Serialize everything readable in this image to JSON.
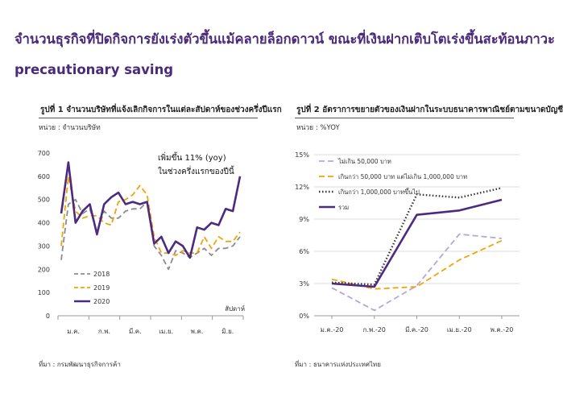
{
  "headline": {
    "line1": "จำนวนธุรกิจที่ปิดกิจการยังเร่งตัวขึ้นแม้คลายล็อกดาวน์ ขณะที่เงินฝากเติบโตเร่งขึ้นสะท้อนภาวะ",
    "line2": "precautionary saving"
  },
  "charts": {
    "left": {
      "title": "รูปที่ 1 จำนวนบริษัทที่แจ้งเลิกกิจการในแต่ละสัปดาห์ของช่วงครึ่งปีแรก",
      "unit": "หน่วย : จำนวนบริษัท",
      "source": "ที่มา : กรมพัฒนาธุรกิจการค้า",
      "annotation_line1": "เพิ่มขึ้น  11% (yoy)",
      "annotation_line2": "ในช่วงครึ่งแรกของปีนี้",
      "x_unit": "สัปดาห์"
    },
    "right": {
      "title": "รูปที่ 2 อัตราการขยายตัวของเงินฝากในระบบธนาคารพาณิชย์ตามขนาดบัญชี",
      "unit": "หน่วย : %YOY",
      "source": "ที่มา : ธนาคารแห่งประเทศไทย"
    }
  },
  "chart_data": [
    {
      "type": "line",
      "title": "รูปที่ 1 จำนวนบริษัทที่แจ้งเลิกกิจการในแต่ละสัปดาห์ของช่วงครึ่งปีแรก",
      "ylabel": "หน่วย : จำนวนบริษัท",
      "xlabel": "สัปดาห์",
      "ylim": [
        0,
        700
      ],
      "yticks": [
        0,
        100,
        200,
        300,
        400,
        500,
        600,
        700
      ],
      "x_month_labels": [
        "ม.ค.",
        "ก.พ.",
        "มี.ค.",
        "เม.ย.",
        "พ.ค.",
        "มิ.ย."
      ],
      "x": [
        1,
        2,
        3,
        4,
        5,
        6,
        7,
        8,
        9,
        10,
        11,
        12,
        13,
        14,
        15,
        16,
        17,
        18,
        19,
        20,
        21,
        22,
        23,
        24,
        25,
        26
      ],
      "legend_position": "bottom-left",
      "grid": false,
      "series": [
        {
          "name": "2018",
          "color": "#8c8c8c",
          "dash": "dashed",
          "values": [
            240,
            480,
            500,
            440,
            460,
            360,
            450,
            420,
            420,
            450,
            460,
            460,
            490,
            300,
            260,
            200,
            280,
            270,
            250,
            270,
            290,
            260,
            290,
            290,
            300,
            340
          ]
        },
        {
          "name": "2019",
          "color": "#f0a30a",
          "dash": "dashed",
          "values": [
            300,
            600,
            450,
            420,
            430,
            430,
            400,
            390,
            490,
            500,
            520,
            560,
            520,
            340,
            270,
            270,
            260,
            280,
            270,
            270,
            340,
            290,
            340,
            320,
            320,
            360
          ]
        },
        {
          "name": "2020",
          "color": "#4b2a80",
          "dash": "solid",
          "values": [
            440,
            660,
            400,
            450,
            480,
            350,
            480,
            510,
            530,
            480,
            490,
            480,
            490,
            310,
            340,
            270,
            320,
            300,
            250,
            380,
            370,
            400,
            390,
            460,
            450,
            600
          ]
        }
      ]
    },
    {
      "type": "line",
      "title": "รูปที่ 2 อัตราการขยายตัวของเงินฝากในระบบธนาคารพาณิชย์ตามขนาดบัญชี",
      "ylabel": "หน่วย : %YOY",
      "ylim": [
        0,
        15
      ],
      "yticks": [
        "0%",
        "3%",
        "6%",
        "9%",
        "12%",
        "15%"
      ],
      "categories": [
        "ม.ค.-20",
        "ก.พ.-20",
        "มี.ค.-20",
        "เม.ย.-20",
        "พ.ค.-20"
      ],
      "legend_position": "top-left",
      "grid": true,
      "series": [
        {
          "name": "ไม่เกิน 50,000 บาท",
          "color": "#b4a7d6",
          "dash": "dashed",
          "values": [
            2.6,
            0.5,
            2.8,
            7.6,
            7.2
          ]
        },
        {
          "name": "เกินกว่า 50,000 บาท แต่ไม่เกิน 1,000,000 บาท",
          "color": "#f0a30a",
          "dash": "dashed",
          "values": [
            3.4,
            2.5,
            2.7,
            5.2,
            7.0
          ]
        },
        {
          "name": "เกินกว่า 1,000,000 บาทขึ้นไป",
          "color": "#333333",
          "dash": "dotted",
          "values": [
            3.1,
            2.9,
            11.3,
            11.0,
            11.9
          ]
        },
        {
          "name": "รวม",
          "color": "#4b2a80",
          "dash": "solid",
          "values": [
            3.0,
            2.7,
            9.4,
            9.8,
            10.8
          ]
        }
      ]
    }
  ]
}
